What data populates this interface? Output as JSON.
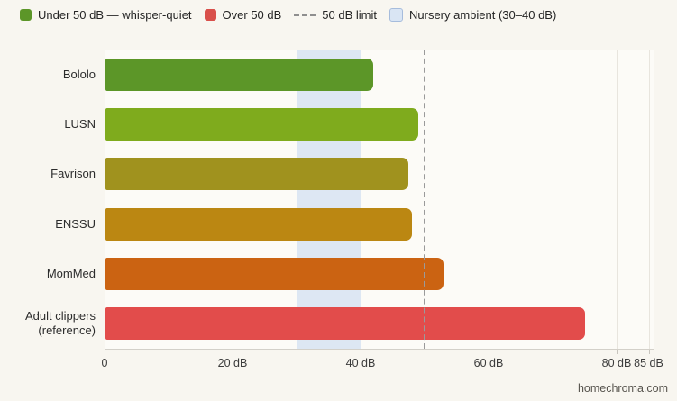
{
  "page": {
    "background": "#f8f6f0",
    "footer_text": "homechroma.com"
  },
  "legend": {
    "items": [
      {
        "type": "swatch",
        "label": "Under 50 dB — whisper-quiet",
        "color": "#5c9628"
      },
      {
        "type": "swatch",
        "label": "Over 50 dB",
        "color": "#d9504b"
      },
      {
        "type": "dashed",
        "label": "50 dB limit",
        "color": "#8f8f8f"
      },
      {
        "type": "band",
        "label": "Nursery ambient (30–40 dB)",
        "color": "#d9e5f4",
        "border_color": "#a6bcdc"
      }
    ]
  },
  "chart_data": {
    "type": "bar",
    "orientation": "horizontal",
    "title": "",
    "xlabel": "",
    "ylabel": "",
    "unit": "dB",
    "xlim": [
      0,
      85
    ],
    "grid": true,
    "legend_position": "top",
    "categories": [
      "Bololo",
      "LUSN",
      "Favrison",
      "ENSSU",
      "MomMed",
      "Adult clippers (reference)"
    ],
    "values": [
      42,
      49,
      47.5,
      48,
      53,
      75
    ],
    "bar_colors": [
      "#5c9628",
      "#7fab1d",
      "#a0921e",
      "#bb8712",
      "#cb6312",
      "#e24c4b"
    ],
    "x_ticks": [
      {
        "value": 0,
        "label": "0"
      },
      {
        "value": 20,
        "label": "20 dB"
      },
      {
        "value": 40,
        "label": "40 dB"
      },
      {
        "value": 60,
        "label": "60 dB"
      },
      {
        "value": 80,
        "label": "80 dB"
      },
      {
        "value": 85,
        "label": "85 dB"
      }
    ],
    "reference_line": {
      "value": 50,
      "label": "50 dB limit",
      "style": "dashed",
      "color": "#9a9a9a"
    },
    "band": {
      "from": 30,
      "to": 40,
      "label": "Nursery ambient (30–40 dB)",
      "color": "#dde7f3"
    }
  }
}
